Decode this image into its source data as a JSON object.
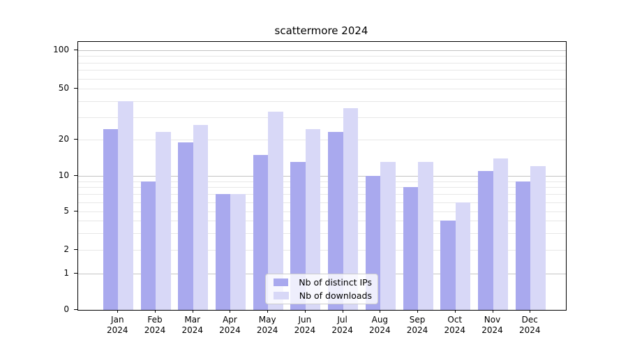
{
  "title": "scattermore 2024",
  "chart_data": {
    "type": "bar",
    "title": "scattermore 2024",
    "categories": [
      "Jan 2024",
      "Feb 2024",
      "Mar 2024",
      "Apr 2024",
      "May 2024",
      "Jun 2024",
      "Jul 2024",
      "Aug 2024",
      "Sep 2024",
      "Oct 2024",
      "Nov 2024",
      "Dec 2024"
    ],
    "series": [
      {
        "name": "Nb of distinct IPs",
        "key": "ips",
        "color": "#a9a9ee",
        "values": [
          24,
          9,
          19,
          7,
          15,
          13,
          23,
          10,
          8,
          4,
          11,
          9
        ]
      },
      {
        "name": "Nb of downloads",
        "key": "downloads",
        "color": "#d8d8f7",
        "values": [
          40,
          23,
          26,
          7,
          33,
          24,
          35,
          13,
          13,
          6,
          14,
          12
        ]
      }
    ],
    "xlabel": "",
    "ylabel": "",
    "yscale": "log above 1, linear 0-1 (symlog-like)",
    "yticks": [
      0,
      1,
      2,
      5,
      10,
      20,
      50,
      100
    ],
    "ylim": [
      0,
      105
    ],
    "grid": "horizontal major and minor log gridlines",
    "legend_position": "lower center inside plot"
  },
  "y_axis": {
    "tick_labels": [
      "0",
      "1",
      "2",
      "5",
      "10",
      "20",
      "50",
      "100"
    ]
  },
  "x_axis": {
    "tick_label_year": "2024",
    "tick_label_months": [
      "Jan",
      "Feb",
      "Mar",
      "Apr",
      "May",
      "Jun",
      "Jul",
      "Aug",
      "Sep",
      "Oct",
      "Nov",
      "Dec"
    ]
  },
  "legend": {
    "items": [
      {
        "label": "Nb of distinct IPs",
        "color": "#a9a9ee"
      },
      {
        "label": "Nb of downloads",
        "color": "#d8d8f7"
      }
    ]
  },
  "colors": {
    "bar_ips": "#a9a9ee",
    "bar_downloads": "#d8d8f7",
    "grid_minor": "#e7e7e7",
    "grid_major": "#c3c3c3",
    "spine": "#000000",
    "text": "#000000",
    "legend_border": "#cccccc",
    "legend_background": "rgba(255,255,255,0.8)"
  }
}
